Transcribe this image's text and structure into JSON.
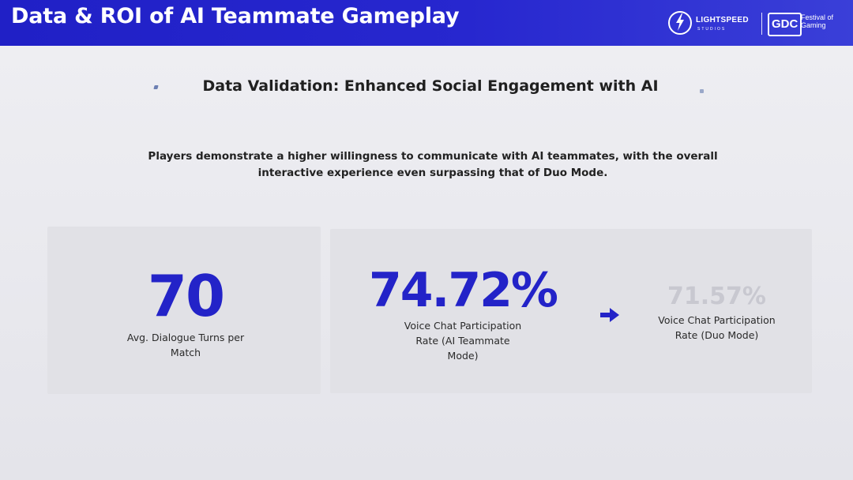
{
  "header": {
    "title": "Data & ROI of AI Teammate Gameplay",
    "logos": {
      "lightspeed_name": "LIGHTSPEED",
      "lightspeed_sub": "STUDIOS",
      "gdc_mark": "GDC",
      "gdc_tagline": "Festival of Gaming"
    },
    "color": "#2222c8"
  },
  "subtitle": "Data Validation: Enhanced Social Engagement with AI",
  "description": "Players demonstrate a higher willingness to communicate with AI teammates, with the overall interactive experience even surpassing that of Duo Mode.",
  "metrics": {
    "dialogue_turns": {
      "value": "70",
      "label": "Avg. Dialogue Turns per Match"
    },
    "ai_mode": {
      "value": "74.72%",
      "label": "Voice Chat Participation Rate (AI Teammate Mode)"
    },
    "duo_mode": {
      "value": "71.57%",
      "label": "Voice Chat Participation Rate (Duo Mode)"
    }
  },
  "icons": [
    "lightning-bolt-icon",
    "arrow-right-icon"
  ],
  "colors": {
    "accent": "#2323c8",
    "muted_value": "#c8c8d0",
    "card": "#e1e1e6"
  }
}
